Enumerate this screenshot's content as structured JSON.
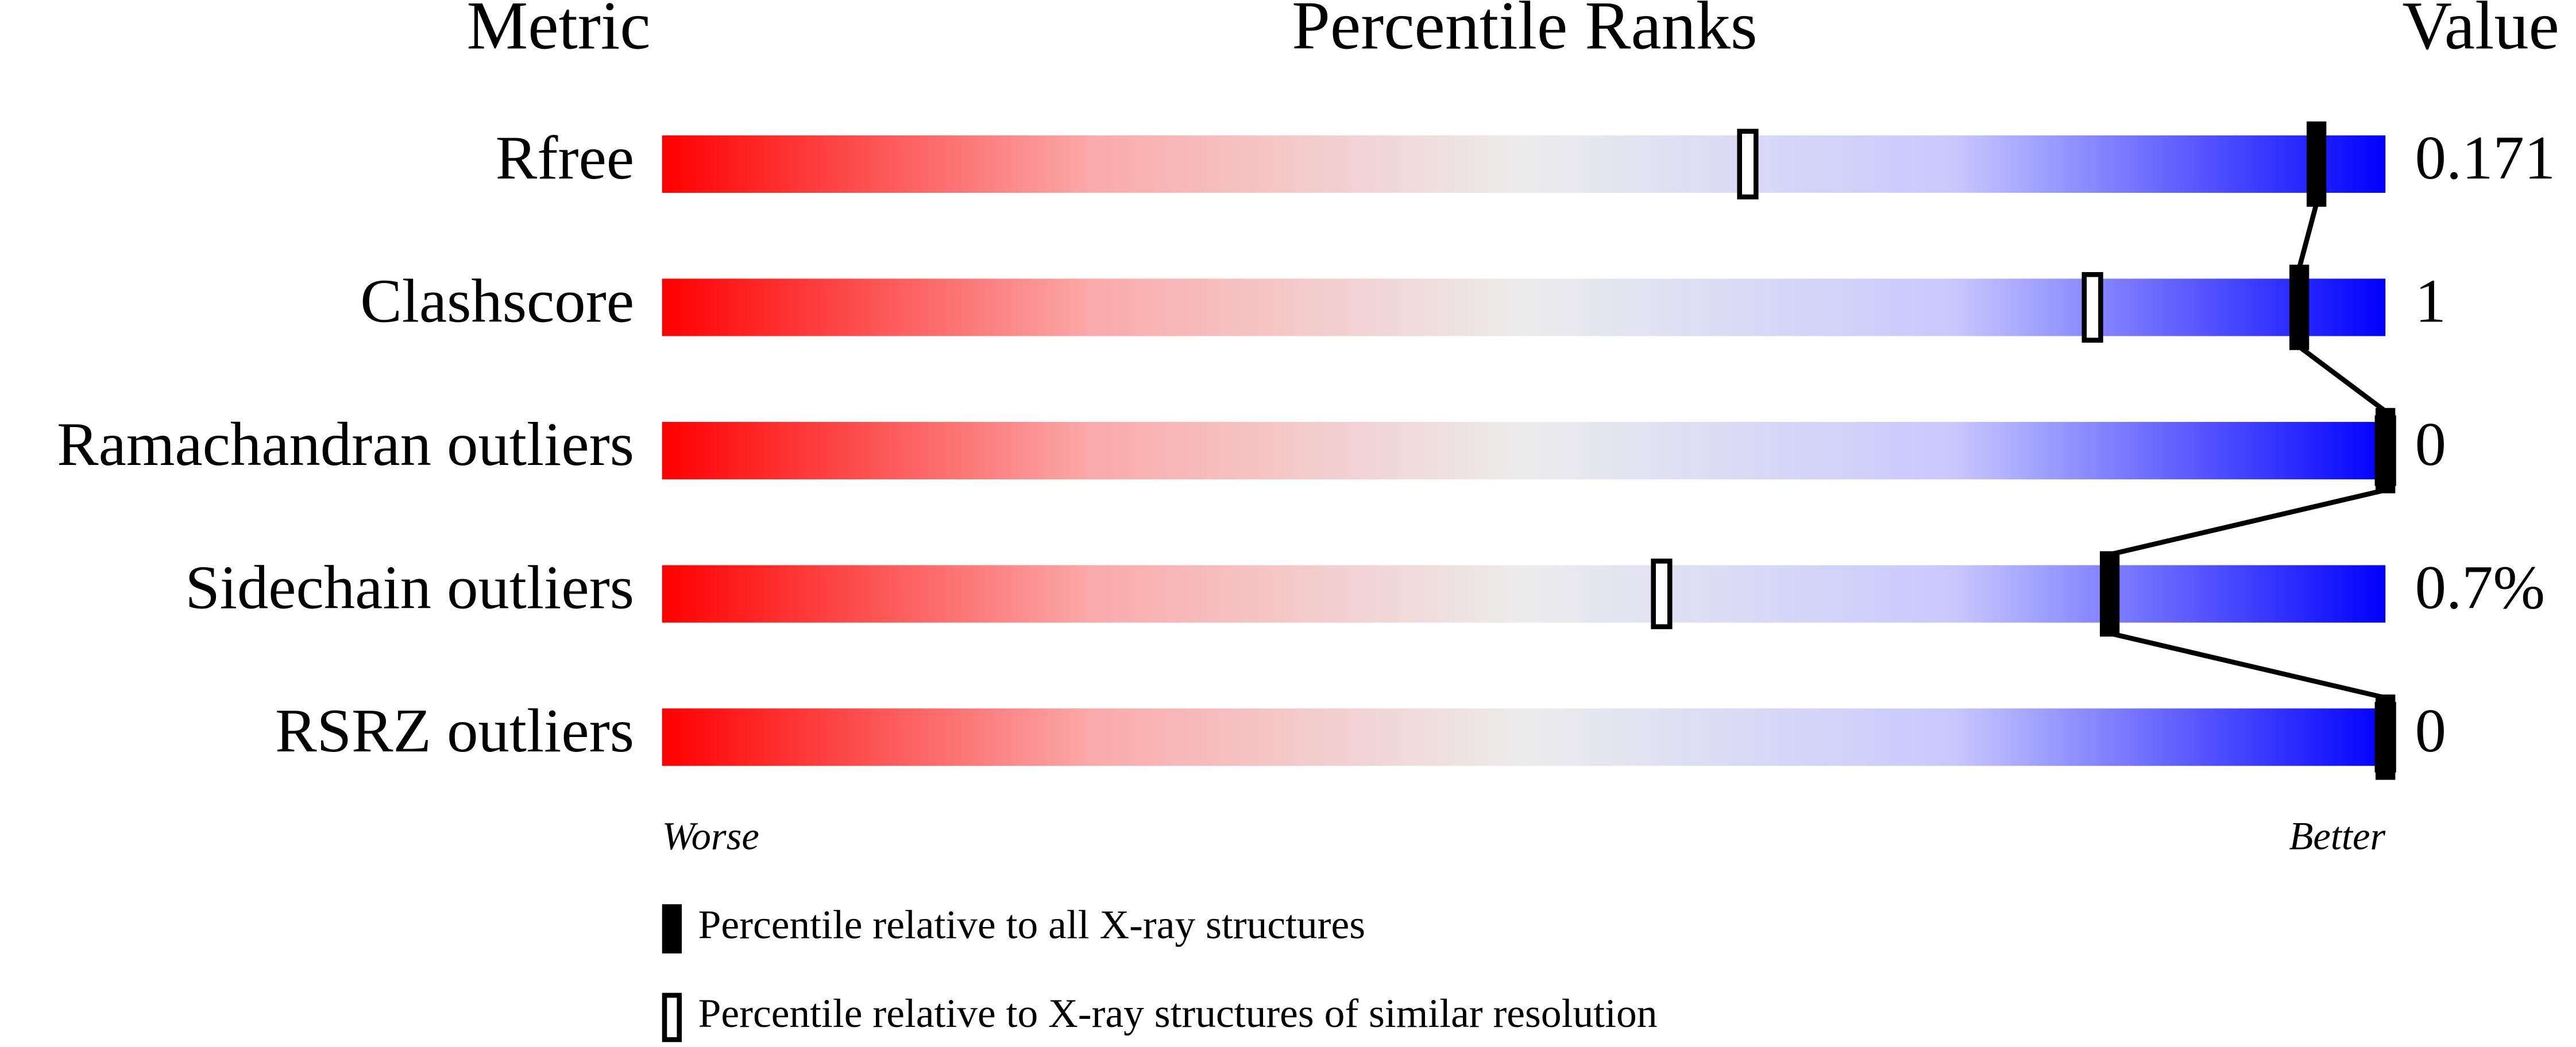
{
  "chart_data": {
    "type": "percentile-slider",
    "headers": {
      "metric": "Metric",
      "ranks": "Percentile Ranks",
      "value": "Value"
    },
    "categories": [
      "Rfree",
      "Clashscore",
      "Ramachandran outliers",
      "Sidechain outliers",
      "RSRZ outliers"
    ],
    "value_texts": [
      "0.171",
      "1",
      "0",
      "0.7%",
      "0"
    ],
    "series": [
      {
        "name": "Percentile relative to all X-ray structures",
        "marker": "filled",
        "color": "#000000",
        "values": [
          96,
          95,
          100,
          84,
          100
        ]
      },
      {
        "name": "Percentile relative to X-ray structures of similar resolution",
        "marker": "open",
        "color": "#000000",
        "values": [
          63,
          83,
          100,
          58,
          100
        ]
      }
    ],
    "xlim": [
      0,
      100
    ],
    "x_low_label": "Worse",
    "x_high_label": "Better"
  }
}
